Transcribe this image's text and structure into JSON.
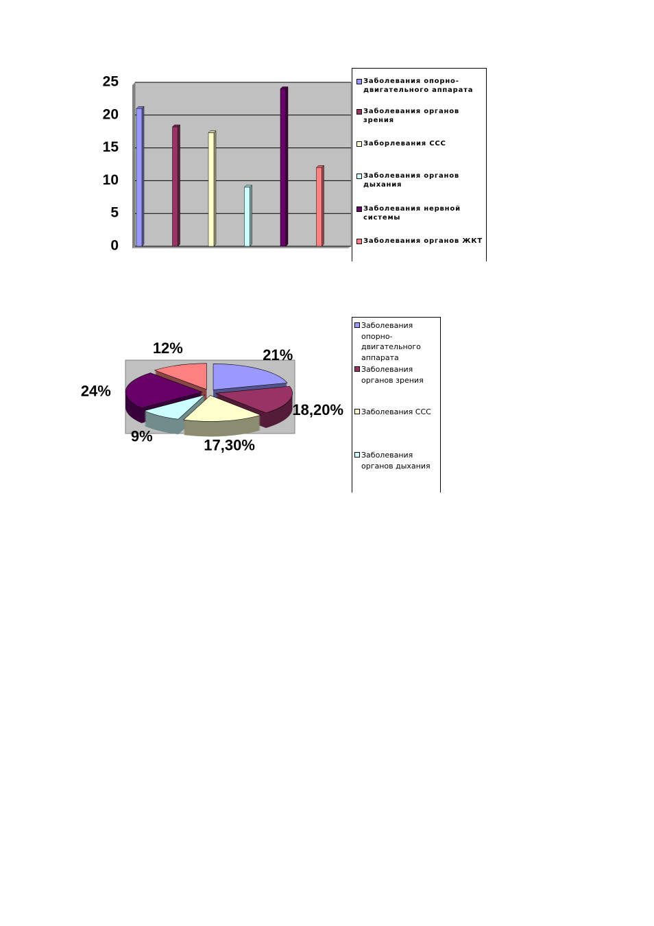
{
  "chart_data": [
    {
      "type": "bar",
      "series": [
        {
          "name": "Заболевания опорно-двигательного аппарата",
          "color": "#9999ff",
          "values": [
            21
          ]
        },
        {
          "name": "Заболевания органов зрения",
          "color": "#993366",
          "values": [
            18.2
          ]
        },
        {
          "name": "Заборлевания ССС",
          "color": "#ffffcc",
          "values": [
            17.3
          ]
        },
        {
          "name": "Заболевания органов дыхания",
          "color": "#ccffff",
          "values": [
            9
          ]
        },
        {
          "name": "Заболевания нервной системы",
          "color": "#660066",
          "values": [
            24
          ]
        },
        {
          "name": "Заболевания органов ЖКТ",
          "color": "#ff8080",
          "values": [
            12
          ]
        }
      ],
      "ylim": [
        0,
        25
      ],
      "yticks": [
        0,
        5,
        10,
        15,
        20,
        25
      ],
      "grid": true,
      "legend": "right"
    },
    {
      "type": "pie",
      "categories": [
        "Заболевания опорно-двигательного аппарата",
        "Заболевания органов зрения",
        "Заболевания ССС",
        "Заболевания органов дыхания",
        null,
        null
      ],
      "values": [
        21,
        18.2,
        17.3,
        9,
        24,
        12
      ],
      "value_labels": [
        "21%",
        "18,20%",
        "17,30%",
        "9%",
        "24%",
        "12%"
      ],
      "colors": [
        "#9999ff",
        "#993366",
        "#ffffcc",
        "#ccffff",
        "#660066",
        "#ff8080"
      ],
      "legend": "right"
    }
  ]
}
